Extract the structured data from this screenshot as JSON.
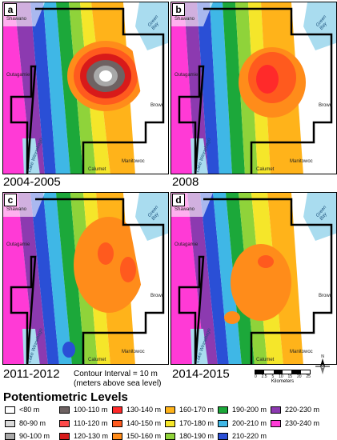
{
  "panels": [
    {
      "letter": "a",
      "year": "2004-2005"
    },
    {
      "letter": "b",
      "year": "2008"
    },
    {
      "letter": "c",
      "year": "2011-2012"
    },
    {
      "letter": "d",
      "year": "2014-2015"
    }
  ],
  "labels": {
    "shawano": "Shawano",
    "outagamie": "Outagamie",
    "brown": "Brown",
    "calumet": "Calumet",
    "manitowoc": "Manitowoc",
    "green_bay": "Green Bay",
    "lake_winnebago": "Lake Winnebago"
  },
  "contour": {
    "line1": "Contour Interval = 10 m",
    "line2": "(meters above sea level)"
  },
  "scale": {
    "ticks": [
      "0",
      "2.5",
      "5",
      "10",
      "15",
      "20",
      "25"
    ],
    "unit": "Kilometers"
  },
  "north": "N",
  "legend": {
    "title": "Potentiometric Levels",
    "items": [
      {
        "label": "<80 m",
        "color": "#ffffff"
      },
      {
        "label": "80-90 m",
        "color": "#d9d9d9"
      },
      {
        "label": "90-100 m",
        "color": "#a8a8a8"
      },
      {
        "label": "100-110 m",
        "color": "#6e6262"
      },
      {
        "label": "110-120 m",
        "color": "#ff4a4a"
      },
      {
        "label": "120-130 m",
        "color": "#d81a1a"
      },
      {
        "label": "130-140 m",
        "color": "#ff2a2a"
      },
      {
        "label": "140-150 m",
        "color": "#ff5a1e"
      },
      {
        "label": "150-160 m",
        "color": "#ff8c1a"
      },
      {
        "label": "160-170 m",
        "color": "#ffb31a"
      },
      {
        "label": "170-180 m",
        "color": "#f5e62a"
      },
      {
        "label": "180-190 m",
        "color": "#8fd33a"
      },
      {
        "label": "190-200 m",
        "color": "#1ca83a"
      },
      {
        "label": "200-210 m",
        "color": "#3fb7e6"
      },
      {
        "label": "210-220 m",
        "color": "#2a4fd6"
      },
      {
        "label": "220-230 m",
        "color": "#8c3ab0"
      },
      {
        "label": "230-240 m",
        "color": "#ff3ad6"
      }
    ]
  }
}
